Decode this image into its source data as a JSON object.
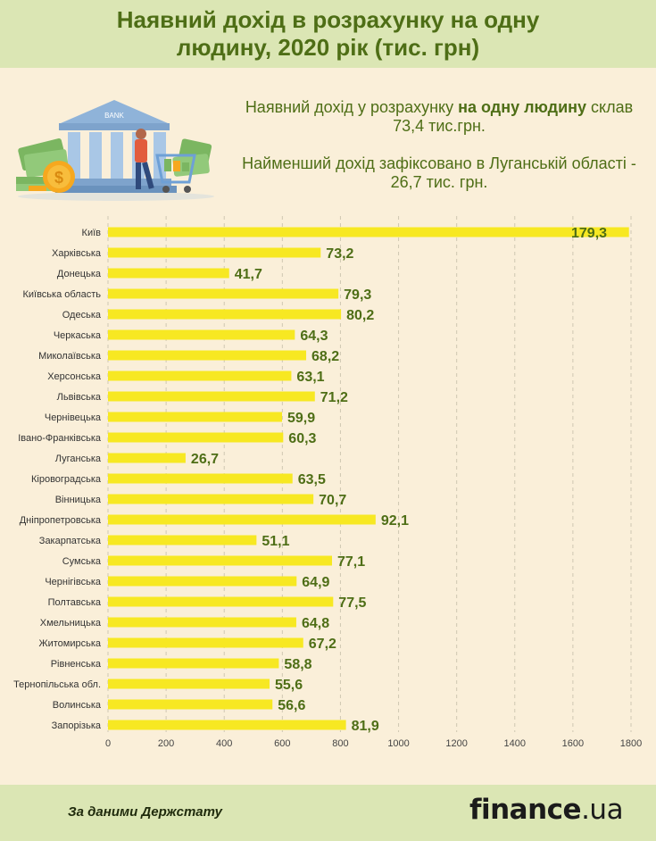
{
  "header": {
    "title": "Наявний дохід в розрахунку на одну людину, 2020 рік (тис. грн)"
  },
  "info": {
    "line1_pre": "Наявний дохід у розрахунку ",
    "line1_bold": "на одну людину",
    "line1_post": " склав 73,4 тис.грн.",
    "line2": "Найменший дохід зафіксовано в Луганській області - 26,7 тис. грн."
  },
  "illustration": {
    "sign": "BANK",
    "icons": [
      "bank-building-icon",
      "cash-stack-icon",
      "coin-icon",
      "person-with-cart-icon"
    ]
  },
  "colors": {
    "bar": "#f7e822",
    "value_label": "#4e6e16",
    "header_bg": "#dbe6b4",
    "page_bg": "#faefd9"
  },
  "chart_data": {
    "type": "bar",
    "orientation": "horizontal",
    "categories": [
      "Київ",
      "Харківська",
      "Донецька",
      "Київська область",
      "Одеська",
      "Черкаська",
      "Миколаївська",
      "Херсонська",
      "Львівська",
      "Чернівецька",
      "Івано-Франківська",
      "Луганська",
      "Кіровоградська",
      "Вінницька",
      "Дніпропетровська",
      "Закарпатська",
      "Сумська",
      "Чернігівська",
      "Полтавська",
      "Хмельницька",
      "Житомирська",
      "Рівненська",
      "Тернопільська обл.",
      "Волинська",
      "Запорізька"
    ],
    "values": [
      179.3,
      73.2,
      41.7,
      79.3,
      80.2,
      64.3,
      68.2,
      63.1,
      71.2,
      59.9,
      60.3,
      26.7,
      63.5,
      70.7,
      92.1,
      51.1,
      77.1,
      64.9,
      77.5,
      64.8,
      67.2,
      58.8,
      55.6,
      56.6,
      81.9
    ],
    "value_labels": [
      "179,3",
      "73,2",
      "41,7",
      "79,3",
      "80,2",
      "64,3",
      "68,2",
      "63,1",
      "71,2",
      "59,9",
      "60,3",
      "26,7",
      "63,5",
      "70,7",
      "92,1",
      "51,1",
      "77,1",
      "64,9",
      "77,5",
      "64,8",
      "67,2",
      "58,8",
      "55,6",
      "56,6",
      "81,9"
    ],
    "bar_scale": 10,
    "xlim": [
      0,
      1800
    ],
    "xticks": [
      0,
      200,
      400,
      600,
      800,
      1000,
      1200,
      1400,
      1600,
      1800
    ],
    "grid": "vertical dashed",
    "title": "",
    "xlabel": "",
    "ylabel": ""
  },
  "footer": {
    "source": "За даними Держстату",
    "logo_pre": "finance",
    "logo_post": ".ua"
  }
}
